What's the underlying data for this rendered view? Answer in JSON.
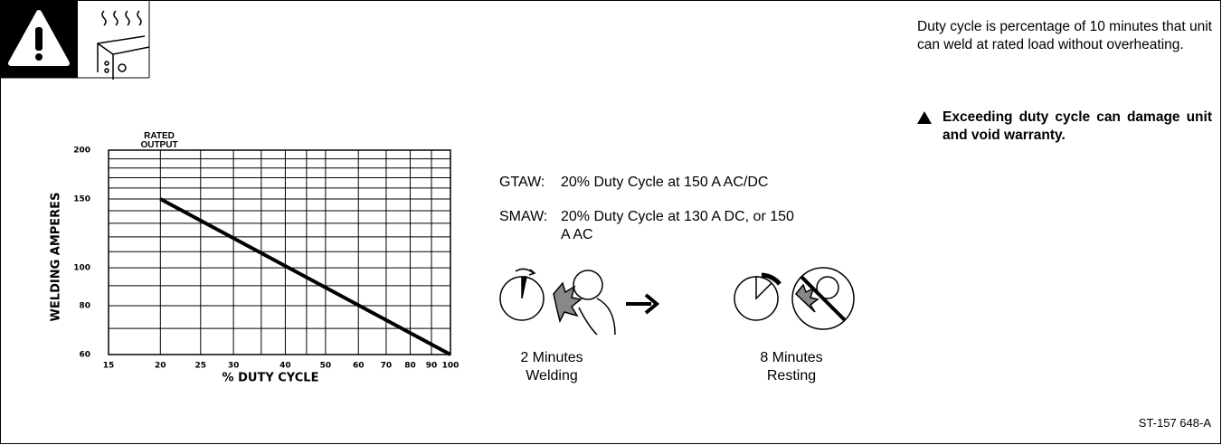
{
  "chart_data": {
    "type": "line",
    "annotation": "RATED OUTPUT",
    "xlabel": "% DUTY CYCLE",
    "ylabel": "WELDING AMPERES",
    "x": [
      20,
      100
    ],
    "values": [
      150,
      60
    ],
    "color": "#000000",
    "xscale": "log",
    "yscale": "log",
    "xlim": [
      15,
      100
    ],
    "ylim": [
      60,
      200
    ],
    "xticks": [
      15,
      20,
      25,
      30,
      40,
      50,
      60,
      70,
      80,
      90,
      100
    ],
    "yticks": [
      60,
      80,
      100,
      150,
      200
    ],
    "xgrid": [
      15,
      20,
      25,
      30,
      35,
      40,
      45,
      50,
      60,
      70,
      80,
      90,
      100
    ],
    "ygrid": [
      60,
      70,
      80,
      90,
      100,
      110,
      120,
      130,
      140,
      150,
      160,
      170,
      180,
      190,
      200
    ],
    "grid": true
  },
  "ratings": [
    {
      "process": "GTAW:",
      "text": "20% Duty Cycle at 150 A AC/DC"
    },
    {
      "process": "SMAW:",
      "text": "20% Duty Cycle at 130 A DC, or 150 A AC"
    }
  ],
  "steps": [
    "2 Minutes Welding",
    "8 Minutes Resting"
  ],
  "description": "Duty cycle is percentage of 10 minutes that unit can weld at rated load without overheating.",
  "warning": "Exceeding duty cycle can damage unit and void warranty.",
  "figure_id": "ST-157 648-A"
}
